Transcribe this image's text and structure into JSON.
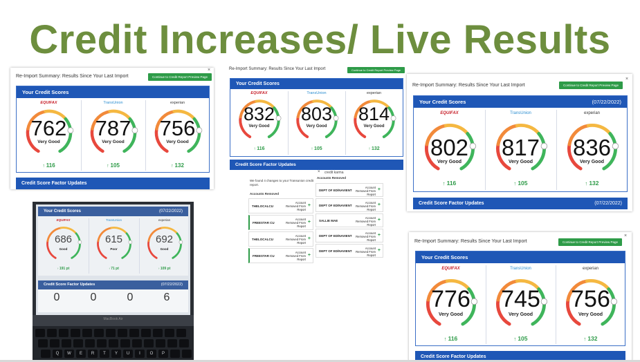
{
  "slide": {
    "title": "Credit Increases/ Live Results"
  },
  "shot1": {
    "header": "Re-Import Summary: Results Since Your Last Import",
    "button": "Continue to Credit Report Preview Page",
    "close": "×",
    "panel_title": "Your Credit Scores",
    "factor_title": "Credit Score Factor Updates",
    "bureaus": [
      {
        "name": "EQUIFAX",
        "score": "762",
        "rating": "Very Good",
        "change": "116"
      },
      {
        "name": "TransUnion",
        "score": "787",
        "rating": "Very Good",
        "change": "105"
      },
      {
        "name": "experian",
        "score": "756",
        "rating": "Very Good",
        "change": "132"
      }
    ]
  },
  "shot2": {
    "header": "Re-Import Summary: Results Since Your Last Import",
    "button": "Continue to Credit Report Preview Page",
    "panel_title": "Your Credit Scores",
    "factor_title": "Credit Score Factor Updates",
    "bureaus": [
      {
        "name": "EQUIFAX",
        "score": "832",
        "rating": "Very Good",
        "change": "116"
      },
      {
        "name": "TransUnion",
        "score": "803",
        "rating": "Very Good",
        "change": "105"
      },
      {
        "name": "experian",
        "score": "814",
        "rating": "Very Good",
        "change": "132"
      }
    ],
    "ck_label": "credit karma",
    "found_text": "We found 4 changes to your Transunion credit report.",
    "accounts_removed": "Accounts Removed",
    "accounts_removed_right": "Accounts Removed",
    "left_rows": [
      {
        "name": "THELOCALCU",
        "status": "Account Removed From Report"
      },
      {
        "name": "FREESTAR CU",
        "status": "Account Removed From Report"
      },
      {
        "name": "THELOCALCU",
        "status": "Account Removed From Report"
      },
      {
        "name": "FREESTAR CU",
        "status": "Account Removed From Report"
      }
    ],
    "right_rows": [
      {
        "name": "DEPT OF ED/NAVIENT",
        "status": "Account Removed From Report"
      },
      {
        "name": "DEPT OF ED/NAVIENT",
        "status": "Account Removed From Report"
      },
      {
        "name": "SALLIE MAE",
        "status": "Account Removed From Report"
      },
      {
        "name": "DEPT OF ED/NAVIENT",
        "status": "Account Removed From Report"
      },
      {
        "name": "DEPT OF ED/NAVIENT",
        "status": "Account Removed From Report"
      }
    ]
  },
  "shot3": {
    "header": "Re-Import Summary: Results Since Your Last Import",
    "button": "Continue to Credit Report Preview Page",
    "close": "×",
    "panel_title": "Your Credit Scores",
    "date": "(07/22/2022)",
    "factor_title": "Credit Score Factor Updates",
    "factor_date": "(07/22/2022)",
    "bureaus": [
      {
        "name": "EQUIFAX",
        "score": "802",
        "rating": "Very Good",
        "change": "116"
      },
      {
        "name": "TransUnion",
        "score": "817",
        "rating": "Very Good",
        "change": "105"
      },
      {
        "name": "experian",
        "score": "836",
        "rating": "Very Good",
        "change": "132"
      }
    ]
  },
  "shot4": {
    "header": "Re-Import Summary: Results Since Your Last Import",
    "button": "Continue to Credit Report Preview Page",
    "close": "×",
    "panel_title": "Your Credit Scores",
    "factor_title": "Credit Score Factor Updates",
    "bureaus": [
      {
        "name": "EQUIFAX",
        "score": "776",
        "rating": "Very Good",
        "change": "116"
      },
      {
        "name": "TransUnion",
        "score": "745",
        "rating": "Very Good",
        "change": "105"
      },
      {
        "name": "experian",
        "score": "756",
        "rating": "Very Good",
        "change": "132"
      }
    ]
  },
  "photo": {
    "panel_title": "Your Credit Scores",
    "date": "(07/22/2022)",
    "factor_title": "Credit Score Factor Updates",
    "factor_date": "(07/22/2022)",
    "bureaus": [
      {
        "name": "EQUIFAX",
        "score": "686",
        "rating": "Good",
        "change": "191 pt"
      },
      {
        "name": "TransUnion",
        "score": "615",
        "rating": "Poor",
        "change": "71 pt"
      },
      {
        "name": "experian",
        "score": "692",
        "rating": "Good",
        "change": "109 pt"
      }
    ],
    "counts": [
      "0",
      "0",
      "0",
      "6"
    ],
    "laptop_label": "MacBook Air",
    "keys_row1": [
      "Q",
      "W",
      "E",
      "R",
      "T",
      "Y",
      "U",
      "I",
      "O",
      "P"
    ]
  },
  "colors": {
    "title_green": "#6d8e3e",
    "panel_blue": "#1f57b6",
    "button_green": "#2e9b48",
    "gauge_low": "#e8483d",
    "gauge_mid": "#f5b841",
    "gauge_high": "#3fb55b"
  }
}
